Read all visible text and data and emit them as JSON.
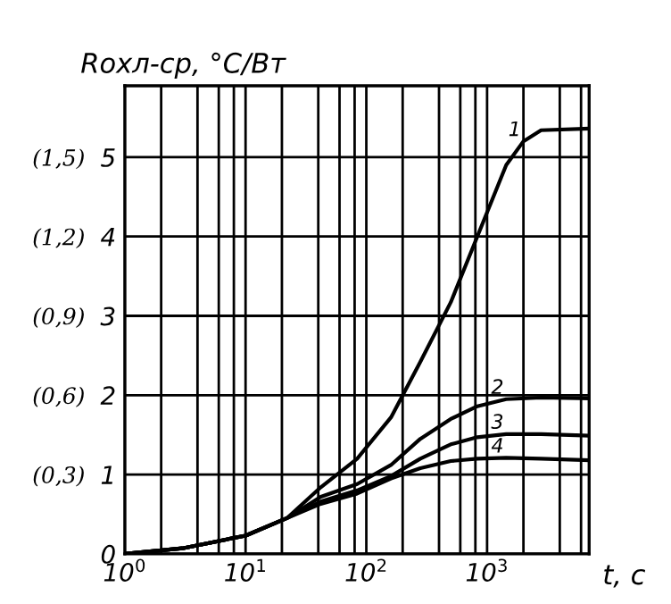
{
  "chart_data": {
    "type": "line",
    "xlabel": "t, c",
    "ylabel": "Rохл-ср, °C/Вт",
    "log": "x",
    "xlim": [
      1,
      7000
    ],
    "ylim": [
      0,
      5.9
    ],
    "xticks": [
      {
        "value": 1,
        "label": "10$^{0}$"
      },
      {
        "value": 2,
        "label": null
      },
      {
        "value": 4,
        "label": null
      },
      {
        "value": 6,
        "label": null
      },
      {
        "value": 8,
        "label": null
      },
      {
        "value": 10,
        "label": "10$^{1}$"
      },
      {
        "value": 20,
        "label": null
      },
      {
        "value": 40,
        "label": null
      },
      {
        "value": 60,
        "label": null
      },
      {
        "value": 80,
        "label": null
      },
      {
        "value": 100,
        "label": "10$^{2}$"
      },
      {
        "value": 200,
        "label": null
      },
      {
        "value": 400,
        "label": null
      },
      {
        "value": 600,
        "label": null
      },
      {
        "value": 800,
        "label": null
      },
      {
        "value": 1000,
        "label": "10$^{3}$"
      },
      {
        "value": 2000,
        "label": null
      },
      {
        "value": 4000,
        "label": null
      },
      {
        "value": 6000,
        "label": null
      }
    ],
    "yticks": [
      0,
      1,
      2,
      3,
      4,
      5
    ],
    "y2lim": [
      0,
      1.77
    ],
    "y2ticks": [
      {
        "value": 0.3,
        "label": "(0,3)"
      },
      {
        "value": 0.6,
        "label": "(0,6)"
      },
      {
        "value": 0.9,
        "label": "(0,9)"
      },
      {
        "value": 1.2,
        "label": "(1,2)"
      },
      {
        "value": 1.5,
        "label": "(1,5)"
      }
    ],
    "grid": true,
    "legend": false,
    "marker": "none",
    "line_style": "solid",
    "series": [
      {
        "name": "1",
        "color": "#000000",
        "x": [
          1,
          3,
          10,
          22,
          42,
          84,
          160,
          280,
          500,
          830,
          1440,
          2000,
          2800,
          7000
        ],
        "values": [
          0,
          0.07,
          0.23,
          0.45,
          0.84,
          1.2,
          1.72,
          2.42,
          3.17,
          4.0,
          4.9,
          5.2,
          5.34,
          5.36
        ]
      },
      {
        "name": "2",
        "color": "#000000",
        "x": [
          1,
          3,
          10,
          22,
          42,
          84,
          160,
          280,
          500,
          830,
          1440,
          2800,
          7000
        ],
        "values": [
          0,
          0.07,
          0.23,
          0.45,
          0.72,
          0.88,
          1.12,
          1.45,
          1.7,
          1.86,
          1.95,
          1.97,
          1.96
        ]
      },
      {
        "name": "3",
        "color": "#000000",
        "x": [
          1,
          3,
          10,
          22,
          42,
          84,
          160,
          280,
          500,
          830,
          1440,
          2800,
          7000
        ],
        "values": [
          0,
          0.07,
          0.23,
          0.45,
          0.66,
          0.8,
          0.98,
          1.2,
          1.38,
          1.47,
          1.51,
          1.51,
          1.49
        ]
      },
      {
        "name": "4",
        "color": "#000000",
        "x": [
          1,
          3,
          10,
          22,
          42,
          84,
          160,
          280,
          500,
          830,
          1440,
          2800,
          7000
        ],
        "values": [
          0,
          0.07,
          0.23,
          0.45,
          0.63,
          0.76,
          0.95,
          1.08,
          1.17,
          1.2,
          1.21,
          1.2,
          1.18
        ]
      }
    ]
  }
}
